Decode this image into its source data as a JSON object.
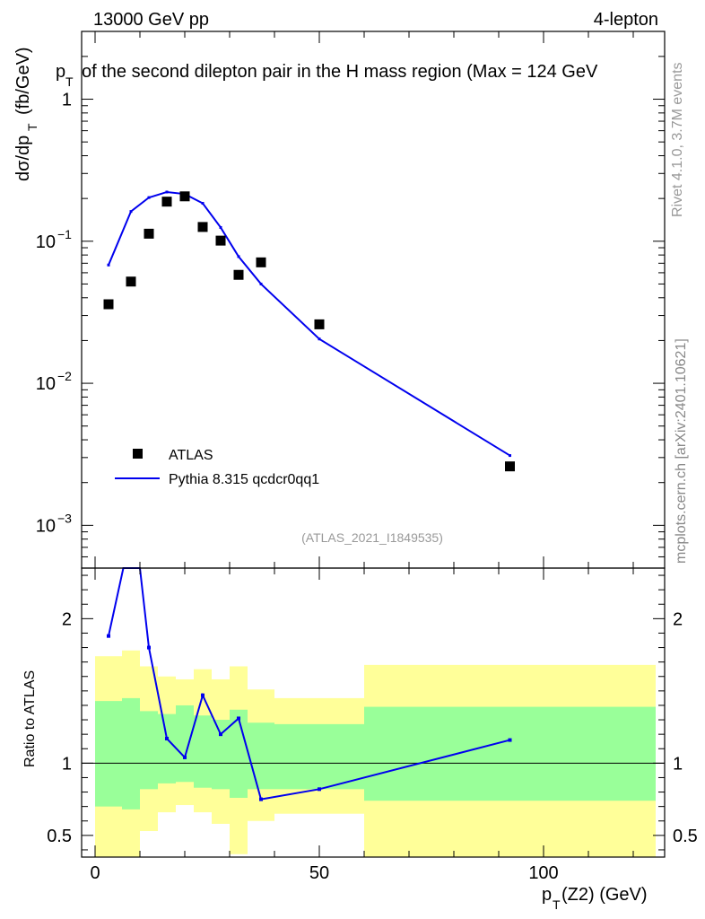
{
  "header": {
    "energy_label": "13000 GeV pp",
    "process_label": "4-lepton",
    "plot_title": "of the second dilepton pair in the H mass region (Max = 124 GeV",
    "plot_title_prefix": "p",
    "plot_title_sub": "T",
    "analysis_id": "(ATLAS_2021_I1849535)",
    "side_rivet": "Rivet 4.1.0,  3.7M events",
    "side_url": "mcplots.cern.ch [arXiv:2401.10621]"
  },
  "colors": {
    "data": "#000000",
    "mc": "#0000ee",
    "band_inner": "#99ff99",
    "band_outer": "#ffff99"
  },
  "chart_data": [
    {
      "type": "scatter",
      "panel": "main",
      "ylabel_main": "dσ/dp",
      "ylabel_sub": "T",
      "ylabel_unit": "(fb/GeV)",
      "yscale": "log",
      "ylim": [
        0.0005,
        3
      ],
      "xlim": [
        -3,
        127
      ],
      "yticks": [
        {
          "value": 0.001,
          "base": "10",
          "exp": "−3"
        },
        {
          "value": 0.01,
          "base": "10",
          "exp": "−2"
        },
        {
          "value": 0.1,
          "base": "10",
          "exp": "−1"
        },
        {
          "value": 1,
          "base": "1",
          "exp": ""
        }
      ],
      "legend": {
        "position": "bottom-left",
        "entries": [
          "ATLAS",
          "Pythia 8.315 qcdcr0qq1"
        ]
      },
      "series": [
        {
          "name": "ATLAS",
          "style": "markers",
          "x": [
            3,
            8,
            12,
            16,
            20,
            24,
            28,
            32,
            37,
            50,
            92.5
          ],
          "values": [
            0.036,
            0.052,
            0.113,
            0.19,
            0.207,
            0.126,
            0.101,
            0.058,
            0.071,
            0.026,
            0.0026
          ]
        },
        {
          "name": "Pythia 8.315 qcdcr0qq1",
          "style": "line",
          "x": [
            3,
            8,
            12,
            16,
            20,
            24,
            28,
            32,
            37,
            50,
            92.5
          ],
          "values": [
            0.068,
            0.162,
            0.203,
            0.222,
            0.215,
            0.185,
            0.125,
            0.078,
            0.05,
            0.0205,
            0.0031
          ]
        }
      ]
    },
    {
      "type": "line",
      "panel": "ratio",
      "ylabel": "Ratio to ATLAS",
      "xlabel_main": "p",
      "xlabel_sub": "T",
      "xlabel_rest": "(Z2) (GeV)",
      "ylim": [
        0.35,
        2.35
      ],
      "xlim": [
        -3,
        127
      ],
      "yticks": [
        {
          "value": 0.5,
          "label": "0.5"
        },
        {
          "value": 1,
          "label": "1"
        },
        {
          "value": 2,
          "label": "2"
        }
      ],
      "xticks": [
        {
          "value": 0,
          "label": "0"
        },
        {
          "value": 50,
          "label": "50"
        },
        {
          "value": 100,
          "label": "100"
        }
      ],
      "bins": [
        {
          "lo": 0,
          "hi": 6,
          "inner": [
            0.7,
            1.43
          ],
          "outer": [
            0.3,
            1.74
          ]
        },
        {
          "lo": 6,
          "hi": 10,
          "inner": [
            0.68,
            1.45
          ],
          "outer": [
            0.3,
            1.78
          ]
        },
        {
          "lo": 10,
          "hi": 14,
          "inner": [
            0.82,
            1.36
          ],
          "outer": [
            0.53,
            1.67
          ]
        },
        {
          "lo": 14,
          "hi": 18,
          "inner": [
            0.86,
            1.34
          ],
          "outer": [
            0.66,
            1.6
          ]
        },
        {
          "lo": 18,
          "hi": 22,
          "inner": [
            0.87,
            1.4
          ],
          "outer": [
            0.71,
            1.58
          ]
        },
        {
          "lo": 22,
          "hi": 26,
          "inner": [
            0.83,
            1.33
          ],
          "outer": [
            0.66,
            1.65
          ]
        },
        {
          "lo": 26,
          "hi": 30,
          "inner": [
            0.82,
            1.3
          ],
          "outer": [
            0.58,
            1.58
          ]
        },
        {
          "lo": 30,
          "hi": 34,
          "inner": [
            0.76,
            1.37
          ],
          "outer": [
            0.37,
            1.67
          ]
        },
        {
          "lo": 34,
          "hi": 40,
          "inner": [
            0.82,
            1.28
          ],
          "outer": [
            0.6,
            1.51
          ]
        },
        {
          "lo": 40,
          "hi": 60,
          "inner": [
            0.82,
            1.27
          ],
          "outer": [
            0.65,
            1.45
          ]
        },
        {
          "lo": 60,
          "hi": 125,
          "inner": [
            0.74,
            1.39
          ],
          "outer": [
            0.3,
            1.68
          ]
        }
      ],
      "series": [
        {
          "name": "Pythia 8.315 qcdcr0qq1 / ATLAS",
          "x": [
            3,
            6.3,
            10,
            12,
            16,
            20,
            24,
            28,
            32,
            37,
            50,
            92.5
          ],
          "values": [
            1.88,
            2.35,
            2.35,
            1.8,
            1.17,
            1.04,
            1.47,
            1.2,
            1.31,
            0.75,
            0.82,
            1.16
          ]
        }
      ],
      "reference": 1
    }
  ]
}
